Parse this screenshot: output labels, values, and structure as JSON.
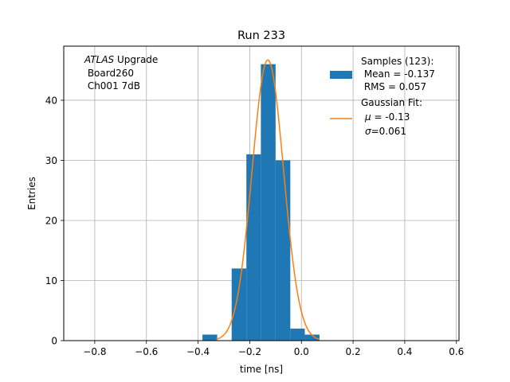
{
  "chart_data": {
    "type": "bar",
    "title": "Run 233",
    "xlabel": "time [ns]",
    "ylabel": "Entries",
    "xlim": [
      -0.92,
      0.61
    ],
    "ylim": [
      0,
      49
    ],
    "xticks": [
      -0.8,
      -0.6,
      -0.4,
      -0.2,
      0.0,
      0.2,
      0.4,
      0.6
    ],
    "xtick_labels": [
      "−0.8",
      "−0.6",
      "−0.4",
      "−0.2",
      "0.0",
      "0.2",
      "0.4",
      "0.6"
    ],
    "yticks": [
      0,
      10,
      20,
      30,
      40
    ],
    "ytick_labels": [
      "0",
      "10",
      "20",
      "30",
      "40"
    ],
    "grid": true,
    "annotation": {
      "line1_italic": "ATLAS",
      "line1_rest": " Upgrade",
      "line2": " Board260",
      "line3": " Ch001 7dB"
    },
    "histogram": {
      "name": "Samples (123):",
      "color": "#1f77b4",
      "bins": [
        {
          "x0": -0.383,
          "x1": -0.326,
          "value": 1
        },
        {
          "x0": -0.326,
          "x1": -0.27,
          "value": 0
        },
        {
          "x0": -0.27,
          "x1": -0.213,
          "value": 12
        },
        {
          "x0": -0.213,
          "x1": -0.157,
          "value": 31
        },
        {
          "x0": -0.157,
          "x1": -0.1,
          "value": 46
        },
        {
          "x0": -0.1,
          "x1": -0.043,
          "value": 30
        },
        {
          "x0": -0.043,
          "x1": 0.013,
          "value": 2
        },
        {
          "x0": 0.013,
          "x1": 0.07,
          "value": 1
        }
      ]
    },
    "fit": {
      "name": "Gaussian Fit:",
      "color": "#ff7f0e",
      "mu": -0.13,
      "sigma": 0.061,
      "amplitude": 46.7,
      "x_range": [
        -0.33,
        0.07
      ]
    },
    "legend": {
      "position": "top-right",
      "hist_line1": "Samples (123):",
      "hist_line2": " Mean = -0.137",
      "hist_line3": " RMS = 0.057",
      "fit_line1": "Gaussian Fit:",
      "fit_mu_symbol": "μ",
      "fit_mu_rest": " = -0.13",
      "fit_sigma_symbol": "σ",
      "fit_sigma_rest": "=0.061"
    }
  }
}
